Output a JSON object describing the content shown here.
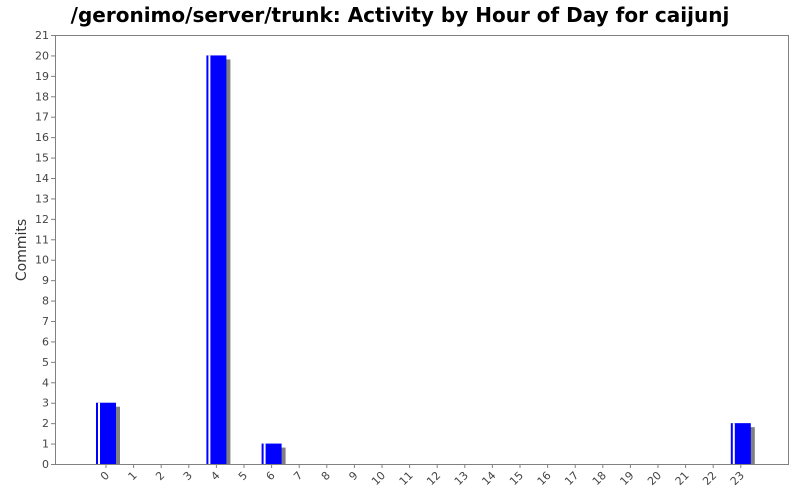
{
  "chart_data": {
    "type": "bar",
    "title": "/geronimo/server/trunk: Activity by Hour of Day for caijunj",
    "ylabel": "Commits",
    "xlabel": "",
    "categories": [
      "0",
      "1",
      "2",
      "3",
      "4",
      "5",
      "6",
      "7",
      "8",
      "9",
      "10",
      "11",
      "12",
      "13",
      "14",
      "15",
      "16",
      "17",
      "18",
      "19",
      "20",
      "21",
      "22",
      "23"
    ],
    "values": [
      3,
      0,
      0,
      0,
      20,
      0,
      1,
      0,
      0,
      0,
      0,
      0,
      0,
      0,
      0,
      0,
      0,
      0,
      0,
      0,
      0,
      0,
      0,
      2
    ],
    "ylim": [
      0,
      21
    ],
    "yticks": [
      "0",
      "1",
      "2",
      "3",
      "4",
      "5",
      "6",
      "7",
      "8",
      "9",
      "10",
      "11",
      "12",
      "13",
      "14",
      "15",
      "16",
      "17",
      "18",
      "19",
      "20",
      "21"
    ],
    "grid": false,
    "colors": {
      "bar": "#0000ff",
      "shadow": "#808080",
      "highlight": "#ffffff",
      "axis": "#808080"
    }
  }
}
